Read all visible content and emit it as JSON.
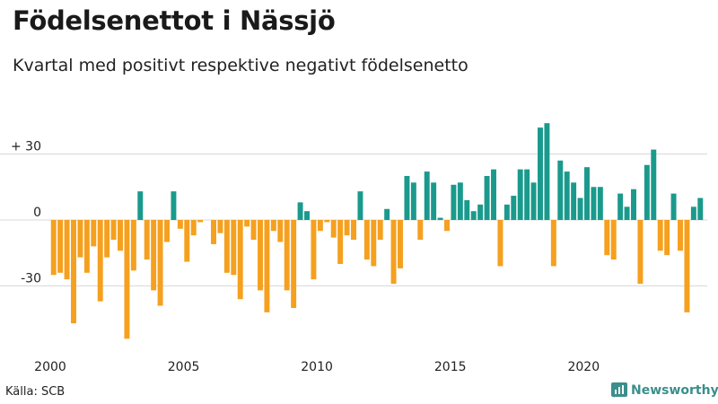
{
  "title": "Födelsenettot i Nässjö",
  "subtitle": "Kvartal med positivt respektive negativt födelsenetto",
  "source": "Källa: SCB",
  "brand": "Newsworthy",
  "colors": {
    "positive": "#1a9a8c",
    "negative": "#f5a01e",
    "grid": "#d9d9d9",
    "brand": "#3a8f8c"
  },
  "chart_data": {
    "type": "bar",
    "title": "Födelsenettot i Nässjö",
    "xlabel": "",
    "ylabel": "",
    "ylim": [
      -56,
      46
    ],
    "y_ticks": [
      {
        "value": 30,
        "label": "+ 30"
      },
      {
        "value": 0,
        "label": "0"
      },
      {
        "value": -30,
        "label": "-30"
      }
    ],
    "x_ticks": [
      {
        "value": 2000,
        "label": "2000"
      },
      {
        "value": 2005,
        "label": "2005"
      },
      {
        "value": 2010,
        "label": "2010"
      },
      {
        "value": 2015,
        "label": "2015"
      },
      {
        "value": 2020,
        "label": "2020"
      }
    ],
    "start_year": 2000,
    "quarters_per_year": 4,
    "legend": "none",
    "values": [
      -25,
      -24,
      -27,
      -47,
      -17,
      -24,
      -12,
      -37,
      -17,
      -9,
      -14,
      -54,
      -23,
      13,
      -18,
      -32,
      -39,
      -10,
      13,
      -4,
      -19,
      -7,
      -1,
      0,
      -11,
      -6,
      -24,
      -25,
      -36,
      -3,
      -9,
      -32,
      -42,
      -5,
      -10,
      -32,
      -40,
      8,
      4,
      -27,
      -5,
      -1,
      -8,
      -20,
      -7,
      -9,
      13,
      -18,
      -21,
      -9,
      5,
      -29,
      -22,
      20,
      17,
      -9,
      22,
      17,
      1,
      -5,
      16,
      17,
      9,
      4,
      7,
      20,
      23,
      -21,
      7,
      11,
      23,
      23,
      17,
      42,
      44,
      -21,
      27,
      22,
      17,
      10,
      24,
      15,
      15,
      -16,
      -18,
      12,
      6,
      14,
      -29,
      25,
      32,
      -14,
      -16,
      12,
      -14,
      -42,
      6,
      10
    ]
  }
}
